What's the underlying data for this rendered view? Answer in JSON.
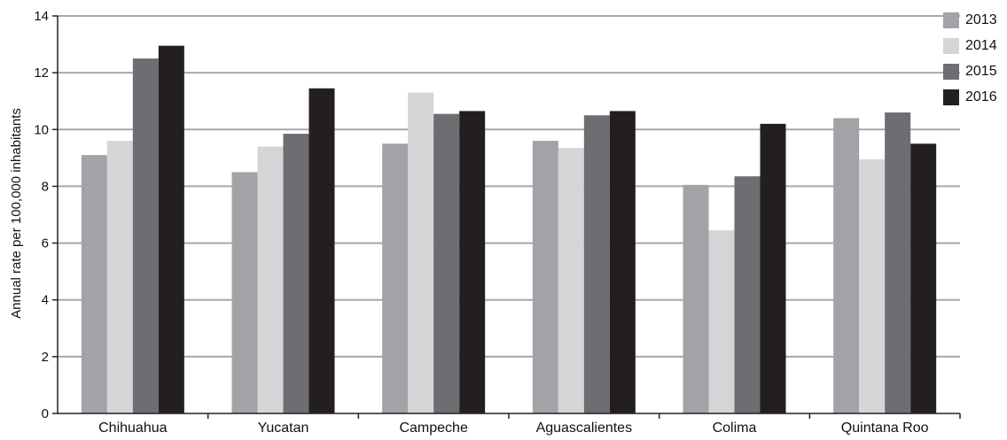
{
  "chart_data": {
    "type": "bar",
    "title": "",
    "xlabel": "",
    "ylabel": "Annual rate per 100,000 inhabitants",
    "ylim": [
      0,
      14
    ],
    "yticks": [
      "0",
      "2",
      "4",
      "6",
      "8",
      "10",
      "12",
      "14"
    ],
    "grid": true,
    "legend_position": "right",
    "categories": [
      "Chihuahua",
      "Yucatan",
      "Campeche",
      "Aguascalientes",
      "Colima",
      "Quintana Roo"
    ],
    "series": [
      {
        "name": "2013",
        "color": "#a2a2a7",
        "values": [
          9.1,
          8.5,
          9.5,
          9.6,
          8.05,
          10.4
        ]
      },
      {
        "name": "2014",
        "color": "#d5d5d8",
        "values": [
          9.6,
          9.4,
          11.3,
          9.35,
          6.45,
          8.95
        ]
      },
      {
        "name": "2015",
        "color": "#6d6d72",
        "values": [
          12.5,
          9.85,
          10.55,
          10.5,
          8.35,
          10.6
        ]
      },
      {
        "name": "2016",
        "color": "#231f20",
        "values": [
          12.95,
          11.45,
          10.65,
          10.65,
          10.2,
          9.5
        ]
      }
    ]
  }
}
